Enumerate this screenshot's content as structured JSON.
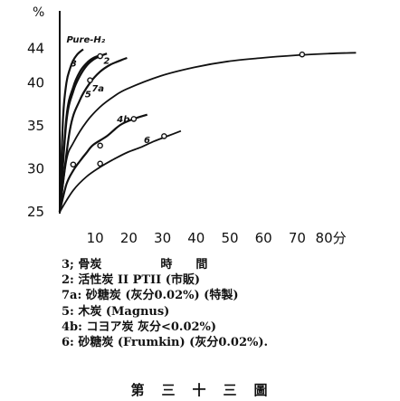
{
  "chart_data": {
    "type": "line",
    "y_unit": "%",
    "x_unit": "分",
    "xlim": [
      0,
      90
    ],
    "ylim": [
      25,
      45.5
    ],
    "x_ticks": [
      "10",
      "20",
      "30",
      "40",
      "50",
      "60",
      "70",
      "80分"
    ],
    "x_tick_values": [
      10,
      20,
      30,
      40,
      50,
      60,
      70,
      80
    ],
    "y_ticks": [
      "25",
      "30",
      "35",
      "40",
      "44"
    ],
    "y_tick_values": [
      25,
      30,
      35,
      40,
      44
    ],
    "series": [
      {
        "name": "Pure-H₂",
        "x": [
          0,
          1,
          2,
          3,
          4,
          5,
          6,
          7
        ],
        "y": [
          25,
          36,
          40,
          41.6,
          42.6,
          43.2,
          43.6,
          43.9
        ],
        "markers": []
      },
      {
        "name": "3",
        "x": [
          0,
          2,
          4,
          6,
          8,
          10,
          12
        ],
        "y": [
          25,
          36,
          39.5,
          41.3,
          42.3,
          42.9,
          43.2
        ],
        "markers": []
      },
      {
        "name": "2",
        "x": [
          0,
          2,
          4,
          6,
          8,
          10,
          12,
          14
        ],
        "y": [
          25,
          35.5,
          39,
          40.8,
          42,
          42.7,
          43.1,
          43.4
        ],
        "markers": [
          [
            12,
            43.1
          ]
        ]
      },
      {
        "name": "7a",
        "x": [
          0,
          3,
          6,
          9,
          12,
          15,
          18,
          20
        ],
        "y": [
          25,
          34.5,
          38,
          40,
          41.3,
          42.1,
          42.6,
          42.9
        ],
        "markers": [
          [
            9,
            40.3
          ]
        ]
      },
      {
        "name": "5",
        "x": [
          0,
          2,
          4,
          8,
          12,
          16,
          20,
          30,
          40,
          50,
          60,
          70,
          80,
          88
        ],
        "y": [
          25,
          31,
          33,
          35.5,
          37.2,
          38.4,
          39.3,
          40.8,
          41.8,
          42.5,
          42.9,
          43.2,
          43.4,
          43.5
        ],
        "markers": [
          [
            72,
            43.3
          ]
        ]
      },
      {
        "name": "4b",
        "x": [
          0,
          2,
          4,
          6,
          8,
          10,
          14,
          18,
          22,
          26
        ],
        "y": [
          25,
          28.2,
          29.8,
          30.9,
          31.9,
          32.8,
          33.8,
          35.1,
          35.8,
          36.3
        ],
        "markers": [
          [
            4,
            30.5
          ],
          [
            12,
            32.7
          ],
          [
            22,
            35.8
          ]
        ]
      },
      {
        "name": "6",
        "x": [
          0,
          4,
          8,
          12,
          16,
          20,
          24,
          28,
          32,
          36
        ],
        "y": [
          25,
          27.5,
          29.1,
          30.2,
          31.1,
          31.9,
          32.5,
          33.2,
          33.8,
          34.4
        ],
        "markers": [
          [
            12,
            30.6
          ],
          [
            31,
            33.8
          ]
        ]
      }
    ]
  },
  "legend": [
    "3; 骨炭　　　　　時　　間",
    "2: 活性炭 II PTII (市販)",
    "7a: 砂糖炭 (灰分0.02%) (特製)",
    "5: 木炭 (Magnus)",
    "4b: コヨア炭 灰分<0.02%)",
    "6: 砂糖炭 (Frumkin) (灰分0.02%)."
  ],
  "caption": "第　三　十　三　圖"
}
